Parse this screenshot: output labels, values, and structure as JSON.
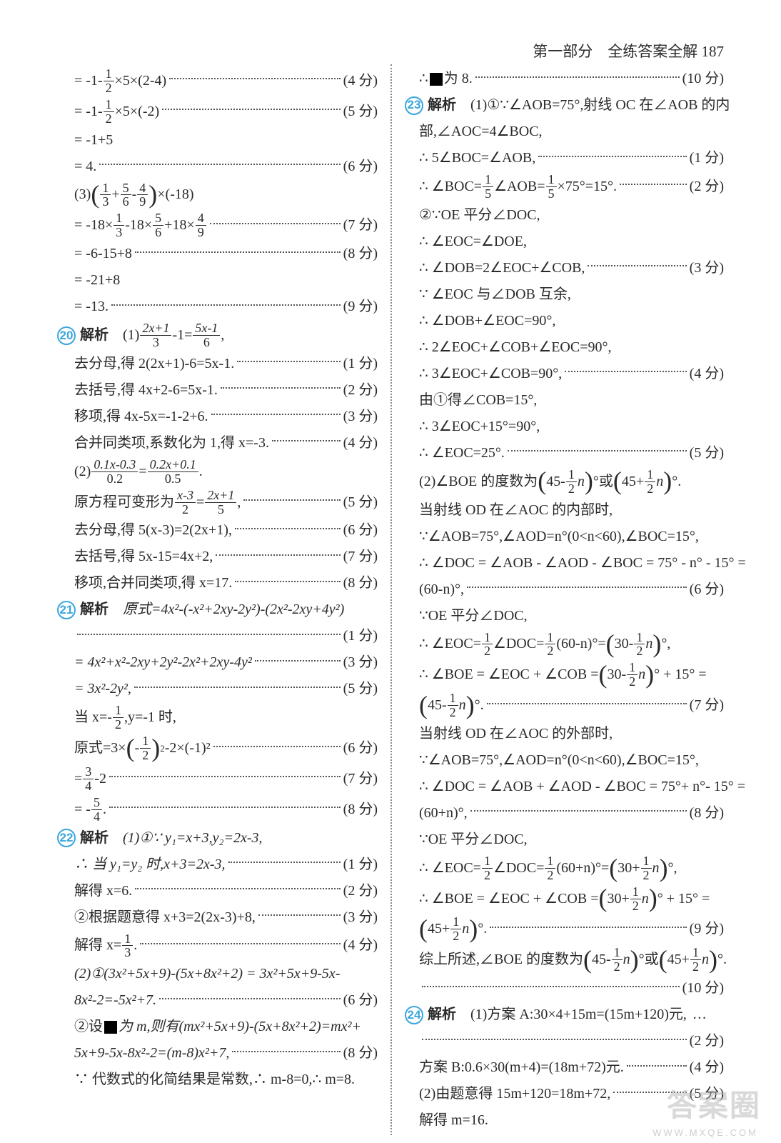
{
  "header": {
    "section": "第一部分　全练答案全解",
    "page": "187"
  },
  "left": {
    "l1": "= -1-",
    "f1n": "1",
    "f1d": "2",
    "l1b": "×5×(2-4)",
    "s1": "(4 分)",
    "l2": "= -1-",
    "l2b": "×5×(-2)",
    "s2": "(5 分)",
    "l3": "= -1+5",
    "l4": "= 4.",
    "s4": "(6 分)",
    "l5a": "(3)",
    "f5an": "1",
    "f5ad": "3",
    "l5b": "+",
    "f5bn": "5",
    "f5bd": "6",
    "l5c": "-",
    "f5cn": "4",
    "f5cd": "9",
    "l5d": "×(-18)",
    "l6a": "= -18×",
    "l6b": "-18×",
    "l6c": "+18×",
    "s6": "(7 分)",
    "l7": "= -6-15+8",
    "s7": "(8 分)",
    "l8": "= -21+8",
    "l9": "= -13.",
    "s9": "(9 分)",
    "q20": "20",
    "q20t": "解析",
    "q20a": "(1)",
    "f20an": "2x+1",
    "f20ad": "3",
    "q20b": "-1=",
    "f20bn": "5x-1",
    "f20bd": "6",
    "q20c": ",",
    "l20a": "去分母,得 2(2x+1)-6=5x-1.",
    "s20a": "(1 分)",
    "l20b": "去括号,得 4x+2-6=5x-1.",
    "s20b": "(2 分)",
    "l20c": "移项,得 4x-5x=-1-2+6.",
    "s20c": "(3 分)",
    "l20d": "合并同类项,系数化为 1,得 x=-3.",
    "s20d": "(4 分)",
    "q20p2": "(2)",
    "f20p2an": "0.1x-0.3",
    "f20p2ad": "0.2",
    "q20p2b": "=",
    "f20p2bn": "0.2x+0.1",
    "f20p2bd": "0.5",
    "q20p2c": ".",
    "l20e": "原方程可变形为",
    "f20en": "x-3",
    "f20ed": "2",
    "l20eb": "=",
    "f20fn": "2x+1",
    "f20fd": "5",
    "l20ec": ",",
    "s20e": "(5 分)",
    "l20f": "去分母,得 5(x-3)=2(2x+1),",
    "s20f": "(6 分)",
    "l20g": "去括号,得 5x-15=4x+2,",
    "s20g": "(7 分)",
    "l20h": "移项,合并同类项,得 x=17.",
    "s20h": "(8 分)",
    "q21": "21",
    "q21t": "解析",
    "q21a": "原式=4x²-(-x²+2xy-2y²)-(2x²-2xy+4y²)",
    "s21a": "(1 分)",
    "l21b": "= 4x²+x²-2xy+2y²-2x²+2xy-4y²",
    "s21b": "(3 分)",
    "l21c": "= 3x²-2y²,",
    "s21c": "(5 分)",
    "l21d": "当 x=-",
    "l21db": ",y=-1 时,",
    "l21e": "原式=3×",
    "l21eb": "-",
    "l21ec": "-2×(-1)²",
    "s21e": "(6 分)",
    "l21f": "=",
    "f21fn": "3",
    "f21fd": "4",
    "l21fb": "-2",
    "s21f": "(7 分)",
    "l21g": "= -",
    "f21gn": "5",
    "f21gd": "4",
    "l21gb": ".",
    "s21g": "(8 分)",
    "q22": "22",
    "q22t": "解析",
    "q22a": "(1)①∵ y₁=x+3,y₂=2x-3,",
    "l22a": "∴ 当 y₁=y₂ 时,x+3=2x-3,",
    "s22a": "(1 分)",
    "l22b": "解得 x=6.",
    "s22b": "(2 分)",
    "l22c": "②根据题意得 x+3=2(2x-3)+8,",
    "s22c": "(3 分)",
    "l22d": "解得 x=",
    "f22dn": "1",
    "f22dd": "3",
    "l22db": ".",
    "s22d": "(4 分)",
    "l22e": "(2)①(3x²+5x+9)-(5x+8x²+2) = 3x²+5x+9-5x-",
    "l22f": "8x²-2=-5x²+7.",
    "s22f": "(6 分)",
    "l22g": "②设▮为 m,则有(mx²+5x+9)-(5x+8x²+2)=mx²+",
    "l22h": "5x+9-5x-8x²-2=(m-8)x²+7,",
    "s22h": "(8 分)",
    "l22i": "∵ 代数式的化简结果是常数,∴ m-8=0,∴ m=8."
  },
  "right": {
    "l1": "∴ ▮为 8.",
    "s1": "(10 分)",
    "q23": "23",
    "q23t": "解析",
    "q23a": "(1)①∵∠AOB=75°,射线 OC 在∠AOB 的内",
    "l23a": "部,∠AOC=4∠BOC,",
    "l23b": "∴ 5∠BOC=∠AOB,",
    "s23b": "(1 分)",
    "l23c": "∴ ∠BOC=",
    "f23cn": "1",
    "f23cd": "5",
    "l23cb": "∠AOB=",
    "l23cc": "×75°=15°.",
    "s23c": "(2 分)",
    "l23d": "②∵OE 平分∠DOC,",
    "l23e": "∴ ∠EOC=∠DOE,",
    "l23f": "∴ ∠DOB=2∠EOC+∠COB,",
    "s23f": "(3 分)",
    "l23g": "∵ ∠EOC 与∠DOB 互余,",
    "l23h": "∴ ∠DOB+∠EOC=90°,",
    "l23i": "∴ 2∠EOC+∠COB+∠EOC=90°,",
    "l23j": "∴ 3∠EOC+∠COB=90°,",
    "s23j": "(4 分)",
    "l23k": "由①得∠COB=15°,",
    "l23l": "∴ 3∠EOC+15°=90°,",
    "l23m": "∴ ∠EOC=25°.",
    "s23m": "(5 分)",
    "l23n": "(2)∠BOE 的度数为",
    "l23nb": "45-",
    "l23nc": "n",
    "l23nd": "°或",
    "l23ne": "45+",
    "l23nf": "n",
    "l23ng": "°.",
    "l23o": "当射线 OD 在∠AOC 的内部时,",
    "l23p": "∵∠AOB=75°,∠AOD=n°(0<n<60),∠BOC=15°,",
    "l23q": "∴ ∠DOC = ∠AOB - ∠AOD - ∠BOC = 75° - n° - 15° =",
    "l23r": "(60-n)°,",
    "s23r": "(6 分)",
    "l23s": "∵OE 平分∠DOC,",
    "l23t": "∴ ∠EOC=",
    "l23tb": "∠DOC=",
    "l23tc": "(60-n)°=",
    "l23td": "30-",
    "l23te": "n",
    "l23tf": "°,",
    "l23u": "∴ ∠BOE = ∠EOC + ∠COB = ",
    "l23ub": "30-",
    "l23uc": "n",
    "l23ud": "° + 15° =",
    "l23v": "45-",
    "l23vb": "n",
    "l23vc": "°.",
    "s23v": "(7 分)",
    "l23w": "当射线 OD 在∠AOC 的外部时,",
    "l23x": "∵∠AOB=75°,∠AOD=n°(0<n<60),∠BOC=15°,",
    "l23y": "∴ ∠DOC = ∠AOB + ∠AOD - ∠BOC = 75°+ n°- 15° =",
    "l23z": "(60+n)°,",
    "s23z": "(8 分)",
    "l23aa": "∵OE 平分∠DOC,",
    "l23ab": "∴ ∠EOC=",
    "l23abb": "∠DOC=",
    "l23abc": "(60+n)°=",
    "l23abd": "30+",
    "l23abe": "n",
    "l23abf": "°,",
    "l23ac": "∴ ∠BOE = ∠EOC + ∠COB = ",
    "l23acb": "30+",
    "l23acc": "n",
    "l23acd": "° + 15° =",
    "l23ad": "45+",
    "l23adb": "n",
    "l23adc": "°.",
    "s23ad": "(9 分)",
    "l23ae": "综上所述,∠BOE 的度数为",
    "l23aeb": "45-",
    "l23aec": "n",
    "l23aed": "°或",
    "l23aee": "45+",
    "l23aef": "n",
    "l23aeg": "°.",
    "s23ae": "(10 分)",
    "q24": "24",
    "q24t": "解析",
    "q24a": "(1)方案 A:30×4+15m=(15m+120)元,",
    "s24a": "(2 分)",
    "l24b": "方案 B:0.6×30(m+4)=(18m+72)元.",
    "s24b": "(4 分)",
    "l24c": "(2)由题意得 15m+120=18m+72,",
    "s24c": "(5 分)",
    "l24d": "解得 m=16."
  },
  "watermark": "答案圈",
  "watermark_url": "WWW.MXQE.COM"
}
